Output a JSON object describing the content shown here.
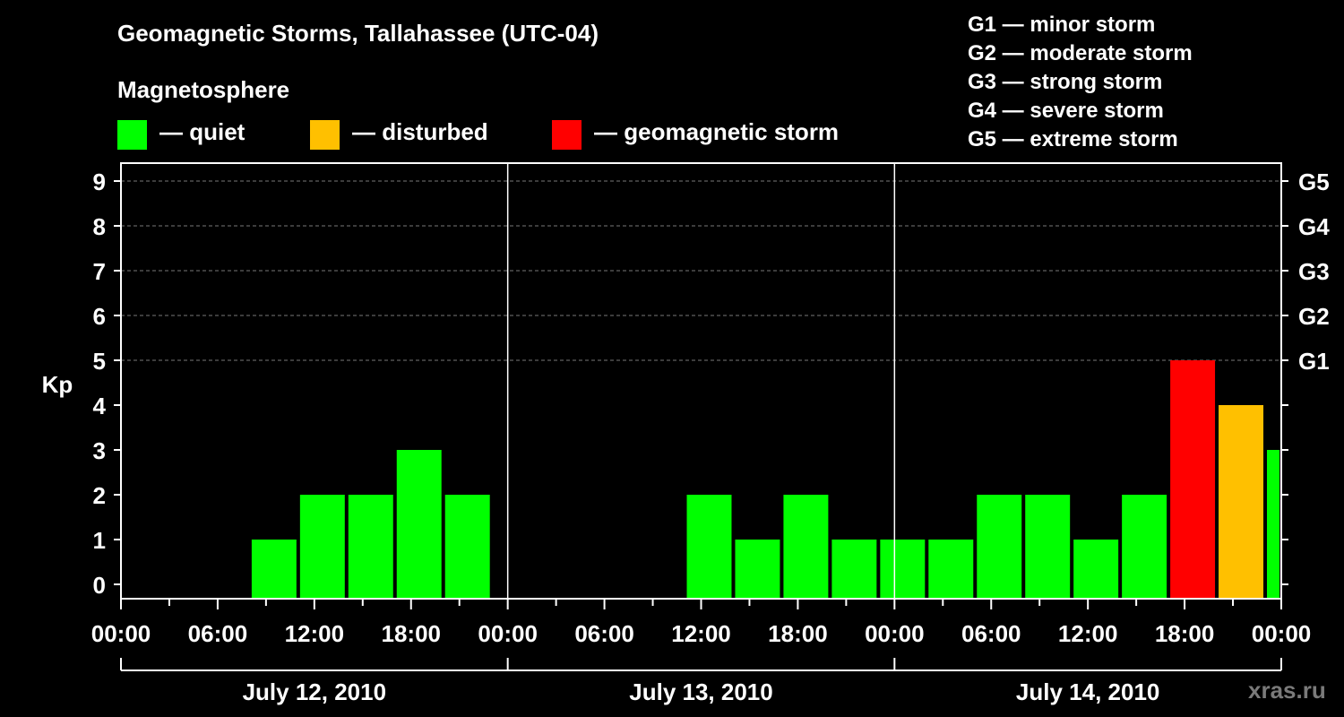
{
  "title": "Geomagnetic Storms, Tallahassee (UTC-04)",
  "legend": {
    "header": "Magnetosphere",
    "items": [
      {
        "label": "— quiet",
        "color": "#00ff00"
      },
      {
        "label": "— disturbed",
        "color": "#ffc000"
      },
      {
        "label": "— geomagnetic storm",
        "color": "#ff0000"
      }
    ]
  },
  "storm_scale": [
    "G1 — minor storm",
    "G2 — moderate storm",
    "G3 — strong storm",
    "G4 — severe storm",
    "G5 — extreme storm"
  ],
  "watermark": "xras.ru",
  "chart_data": {
    "type": "bar",
    "ylabel": "Kp",
    "ylim": [
      0,
      9
    ],
    "yticks": [
      "0",
      "1",
      "2",
      "3",
      "4",
      "5",
      "6",
      "7",
      "8",
      "9"
    ],
    "right_axis": [
      {
        "kp": 5,
        "label": "G1"
      },
      {
        "kp": 6,
        "label": "G2"
      },
      {
        "kp": 7,
        "label": "G3"
      },
      {
        "kp": 8,
        "label": "G4"
      },
      {
        "kp": 9,
        "label": "G5"
      }
    ],
    "grid": true,
    "xtick_labels": [
      "00:00",
      "06:00",
      "12:00",
      "18:00",
      "00:00",
      "06:00",
      "12:00",
      "18:00",
      "00:00",
      "06:00",
      "12:00",
      "18:00",
      "00:00"
    ],
    "days": [
      "July 12, 2010",
      "July 13, 2010",
      "July 14, 2010"
    ],
    "colors": {
      "quiet": "#00ff00",
      "disturbed": "#ffc000",
      "storm": "#ff0000"
    },
    "bars": [
      {
        "start": "2010-07-12 08:00",
        "kp": 1,
        "status": "quiet"
      },
      {
        "start": "2010-07-12 11:00",
        "kp": 2,
        "status": "quiet"
      },
      {
        "start": "2010-07-12 14:00",
        "kp": 2,
        "status": "quiet"
      },
      {
        "start": "2010-07-12 17:00",
        "kp": 3,
        "status": "quiet"
      },
      {
        "start": "2010-07-12 20:00",
        "kp": 2,
        "status": "quiet"
      },
      {
        "start": "2010-07-13 11:00",
        "kp": 2,
        "status": "quiet"
      },
      {
        "start": "2010-07-13 14:00",
        "kp": 1,
        "status": "quiet"
      },
      {
        "start": "2010-07-13 17:00",
        "kp": 2,
        "status": "quiet"
      },
      {
        "start": "2010-07-13 20:00",
        "kp": 1,
        "status": "quiet"
      },
      {
        "start": "2010-07-13 23:00",
        "kp": 1,
        "status": "quiet"
      },
      {
        "start": "2010-07-14 02:00",
        "kp": 1,
        "status": "quiet"
      },
      {
        "start": "2010-07-14 05:00",
        "kp": 2,
        "status": "quiet"
      },
      {
        "start": "2010-07-14 08:00",
        "kp": 2,
        "status": "quiet"
      },
      {
        "start": "2010-07-14 11:00",
        "kp": 1,
        "status": "quiet"
      },
      {
        "start": "2010-07-14 14:00",
        "kp": 2,
        "status": "quiet"
      },
      {
        "start": "2010-07-14 17:00",
        "kp": 5,
        "status": "storm"
      },
      {
        "start": "2010-07-14 20:00",
        "kp": 4,
        "status": "disturbed"
      },
      {
        "start": "2010-07-14 23:00",
        "kp": 3,
        "status": "quiet"
      }
    ]
  }
}
